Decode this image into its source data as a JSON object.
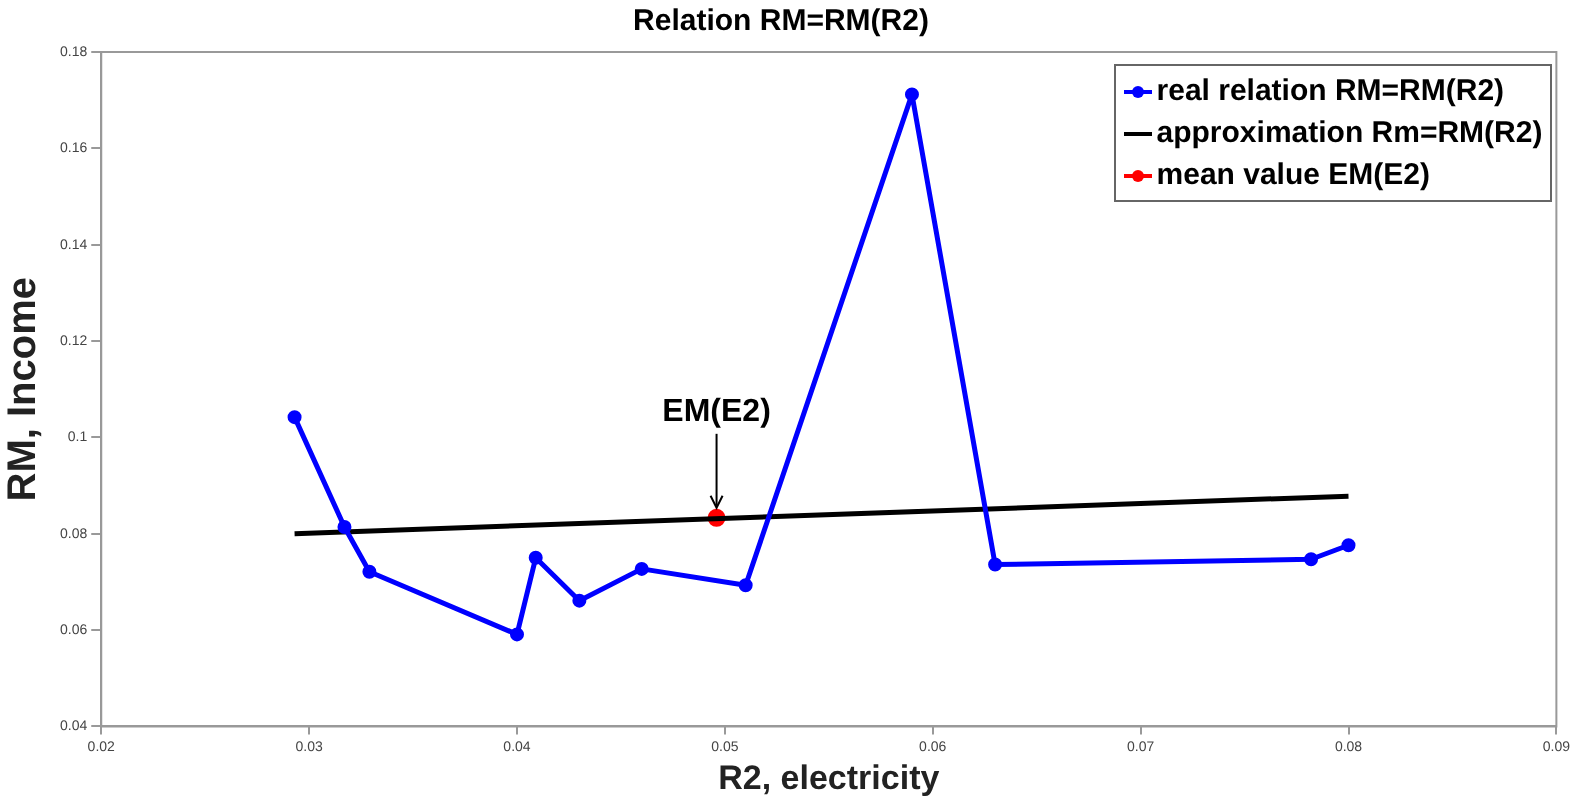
{
  "chart_data": {
    "type": "line",
    "title": "Relation RM=RM(R2)",
    "xlabel": "R2, electricity",
    "ylabel": "RM, Income",
    "xlim": [
      0.02,
      0.09
    ],
    "xticks": [
      0.02,
      0.03,
      0.04,
      0.05,
      0.06,
      0.07,
      0.08,
      0.09
    ],
    "ylim": [
      0.04,
      0.18
    ],
    "yticks": [
      0.04,
      0.06,
      0.08,
      0.1,
      0.12,
      0.14,
      0.16,
      0.18
    ],
    "grid": false,
    "legend": "top right",
    "line_style": "solid",
    "series": [
      {
        "name": "real relation RM=RM(R2)",
        "color": "#0000ff",
        "marker": "circle",
        "x": [
          0.0293,
          0.0317,
          0.0329,
          0.04,
          0.0409,
          0.043,
          0.046,
          0.051,
          0.059,
          0.063,
          0.0782,
          0.08
        ],
        "values": [
          0.1042,
          0.0814,
          0.0721,
          0.0591,
          0.075,
          0.0661,
          0.0727,
          0.0693,
          0.1712,
          0.0736,
          0.0747,
          0.0776
        ]
      },
      {
        "name": "approximation Rm=RM(R2)",
        "color": "#000000",
        "marker": "none",
        "x": [
          0.0293,
          0.08
        ],
        "values": [
          0.08,
          0.0878
        ]
      },
      {
        "name": "mean value EM(E2)",
        "color": "#ff0000",
        "marker": "circle",
        "x": [
          0.0496
        ],
        "values": [
          0.0833
        ]
      }
    ],
    "annotations": [
      {
        "text": "EM(E2)",
        "x": 0.0496,
        "y": 0.0833
      }
    ]
  }
}
